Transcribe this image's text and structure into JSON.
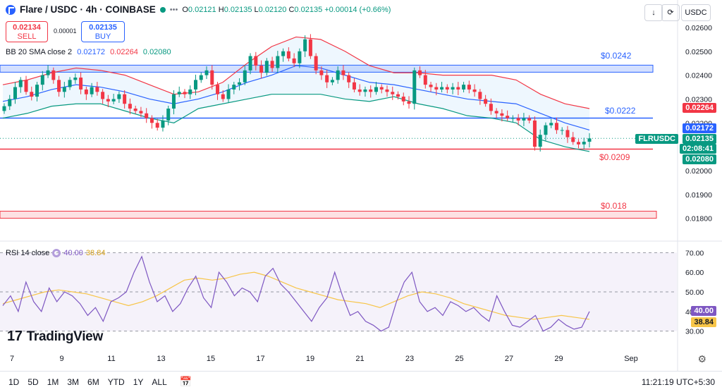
{
  "header": {
    "symbol": "Flare / USDC · 4h · COINBASE",
    "open_label": "O",
    "open": "0.02121",
    "high_label": "H",
    "high": "0.02135",
    "low_label": "L",
    "low": "0.02120",
    "close_label": "C",
    "close": "0.02135",
    "change": "+0.00014 (+0.66%)",
    "more_icon": "ellipsis-icon"
  },
  "trade": {
    "sell_price": "0.02134",
    "sell_label": "SELL",
    "spread": "0.00001",
    "buy_price": "0.02135",
    "buy_label": "BUY"
  },
  "toolbar": {
    "currency": "USDC"
  },
  "bb_legend": {
    "label": "BB 20 SMA close 2",
    "basis": "0.02172",
    "upper": "0.02264",
    "lower": "0.02080"
  },
  "rsi_legend": {
    "label": "RSI 14 close",
    "rsi": "40.00",
    "ma": "38.84"
  },
  "price_badges": {
    "upper": "0.02264",
    "basis": "0.02172",
    "symbol": "FLRUSDC",
    "last": "0.02135",
    "countdown": "02:08:41",
    "lower": "0.02080",
    "rsi": "40.00",
    "rsi_ma": "38.84"
  },
  "annotations": {
    "zone_high": "$0.0242",
    "line_mid": "$0.0222",
    "line_low": "$0.0209",
    "zone_low": "$0.018"
  },
  "branding": {
    "logo_text": "TradingView"
  },
  "timeframes": [
    "1D",
    "5D",
    "1M",
    "3M",
    "6M",
    "YTD",
    "1Y",
    "ALL"
  ],
  "clock": "11:21:19 UTC+5:30",
  "colors": {
    "up": "#089981",
    "down": "#f23645",
    "bb_basis": "#2962ff",
    "bb_upper": "#f23645",
    "bb_lower": "#089981",
    "rsi": "#7e57c2",
    "rsi_ma": "#f7c548"
  },
  "chart_data": [
    {
      "type": "candlestick",
      "title": "Flare / USDC · 4h · COINBASE",
      "x_tick_labels": [
        "7",
        "9",
        "11",
        "13",
        "15",
        "17",
        "19",
        "21",
        "23",
        "25",
        "27",
        "29",
        "Sep"
      ],
      "y_tick_labels": [
        "0.01800",
        "0.01900",
        "0.02000",
        "0.02100",
        "0.02200",
        "0.02300",
        "0.02400",
        "0.02500",
        "0.02600"
      ],
      "ylim": [
        0.0174,
        0.0265
      ],
      "approx_close": [
        0.0227,
        0.023,
        0.0235,
        0.0238,
        0.0233,
        0.0231,
        0.0236,
        0.024,
        0.0242,
        0.0238,
        0.0233,
        0.0235,
        0.0238,
        0.0239,
        0.0234,
        0.0232,
        0.0235,
        0.0233,
        0.023,
        0.0229,
        0.023,
        0.0232,
        0.0228,
        0.0226,
        0.0225,
        0.0224,
        0.0222,
        0.022,
        0.0218,
        0.0221,
        0.0226,
        0.0232,
        0.0233,
        0.0232,
        0.0234,
        0.0238,
        0.024,
        0.0242,
        0.0236,
        0.0232,
        0.023,
        0.0234,
        0.0236,
        0.0237,
        0.0242,
        0.0248,
        0.0244,
        0.0241,
        0.0246,
        0.0243,
        0.0248,
        0.025,
        0.0247,
        0.0245,
        0.025,
        0.0255,
        0.0248,
        0.0242,
        0.024,
        0.0237,
        0.0238,
        0.0242,
        0.024,
        0.0237,
        0.0234,
        0.0233,
        0.0234,
        0.0233,
        0.0235,
        0.0234,
        0.0233,
        0.0232,
        0.0231,
        0.0229,
        0.0228,
        0.0242,
        0.024,
        0.0236,
        0.0235,
        0.0234,
        0.0235,
        0.0234,
        0.0235,
        0.0234,
        0.0236,
        0.0234,
        0.0233,
        0.023,
        0.0228,
        0.0225,
        0.0224,
        0.0223,
        0.0222,
        0.0222,
        0.0221,
        0.0222,
        0.0221,
        0.021,
        0.0215,
        0.0219,
        0.022,
        0.0217,
        0.0217,
        0.0214,
        0.0212,
        0.0211,
        0.02121,
        0.02135
      ],
      "bb_upper_approx": [
        0.0236,
        0.0238,
        0.0241,
        0.0243,
        0.0242,
        0.024,
        0.0236,
        0.0232,
        0.0233,
        0.0237,
        0.0245,
        0.0252,
        0.0256,
        0.0255,
        0.025,
        0.0244,
        0.0241,
        0.0241,
        0.024,
        0.024,
        0.024,
        0.0238,
        0.0232,
        0.0228,
        0.0226
      ],
      "bb_basis_approx": [
        0.0229,
        0.0231,
        0.0234,
        0.0236,
        0.0235,
        0.0233,
        0.023,
        0.0228,
        0.023,
        0.0233,
        0.0237,
        0.024,
        0.0244,
        0.0243,
        0.024,
        0.0237,
        0.0236,
        0.0234,
        0.0232,
        0.023,
        0.0229,
        0.0228,
        0.0224,
        0.022,
        0.0217
      ],
      "bb_lower_approx": [
        0.0222,
        0.0224,
        0.0227,
        0.0228,
        0.0228,
        0.0225,
        0.0222,
        0.022,
        0.0226,
        0.0228,
        0.023,
        0.0232,
        0.0232,
        0.0232,
        0.023,
        0.0229,
        0.0231,
        0.0228,
        0.0226,
        0.0223,
        0.0222,
        0.022,
        0.0213,
        0.021,
        0.0208
      ],
      "levels": [
        {
          "label": "$0.0242",
          "kind": "zone",
          "low": 0.0242,
          "high": 0.02442
        },
        {
          "label": "$0.0222",
          "kind": "line",
          "value": 0.0222
        },
        {
          "label": "$0.0209",
          "kind": "line",
          "value": 0.0209
        },
        {
          "label": "$0.018",
          "kind": "zone",
          "low": 0.01817,
          "high": 0.0183
        }
      ]
    },
    {
      "type": "line",
      "title": "RSI 14 close",
      "y_tick_labels": [
        "30.00",
        "40.00",
        "50.00",
        "60.00",
        "70.00"
      ],
      "ylim": [
        27,
        73
      ],
      "series": [
        {
          "name": "RSI",
          "values": [
            43,
            48,
            40,
            55,
            45,
            40,
            52,
            45,
            50,
            48,
            44,
            38,
            42,
            35,
            45,
            47,
            50,
            60,
            68,
            55,
            45,
            48,
            40,
            44,
            52,
            58,
            47,
            42,
            60,
            55,
            48,
            52,
            50,
            45,
            58,
            62,
            54,
            50,
            45,
            40,
            35,
            42,
            47,
            60,
            48,
            38,
            40,
            35,
            33,
            30,
            32,
            45,
            55,
            60,
            45,
            40,
            42,
            38,
            45,
            43,
            40,
            42,
            38,
            35,
            48,
            40,
            33,
            32,
            35,
            38,
            30,
            32,
            36,
            33,
            31,
            32,
            40
          ]
        },
        {
          "name": "MA",
          "values": [
            44,
            46,
            48,
            50,
            51,
            50,
            49,
            47,
            45,
            43,
            45,
            48,
            52,
            56,
            57,
            56,
            57,
            59,
            60,
            58,
            55,
            52,
            50,
            48,
            46,
            45,
            44,
            42,
            45,
            48,
            50,
            49,
            47,
            44,
            42,
            40,
            38,
            37,
            36,
            37,
            38,
            37,
            36
          ]
        }
      ]
    }
  ]
}
